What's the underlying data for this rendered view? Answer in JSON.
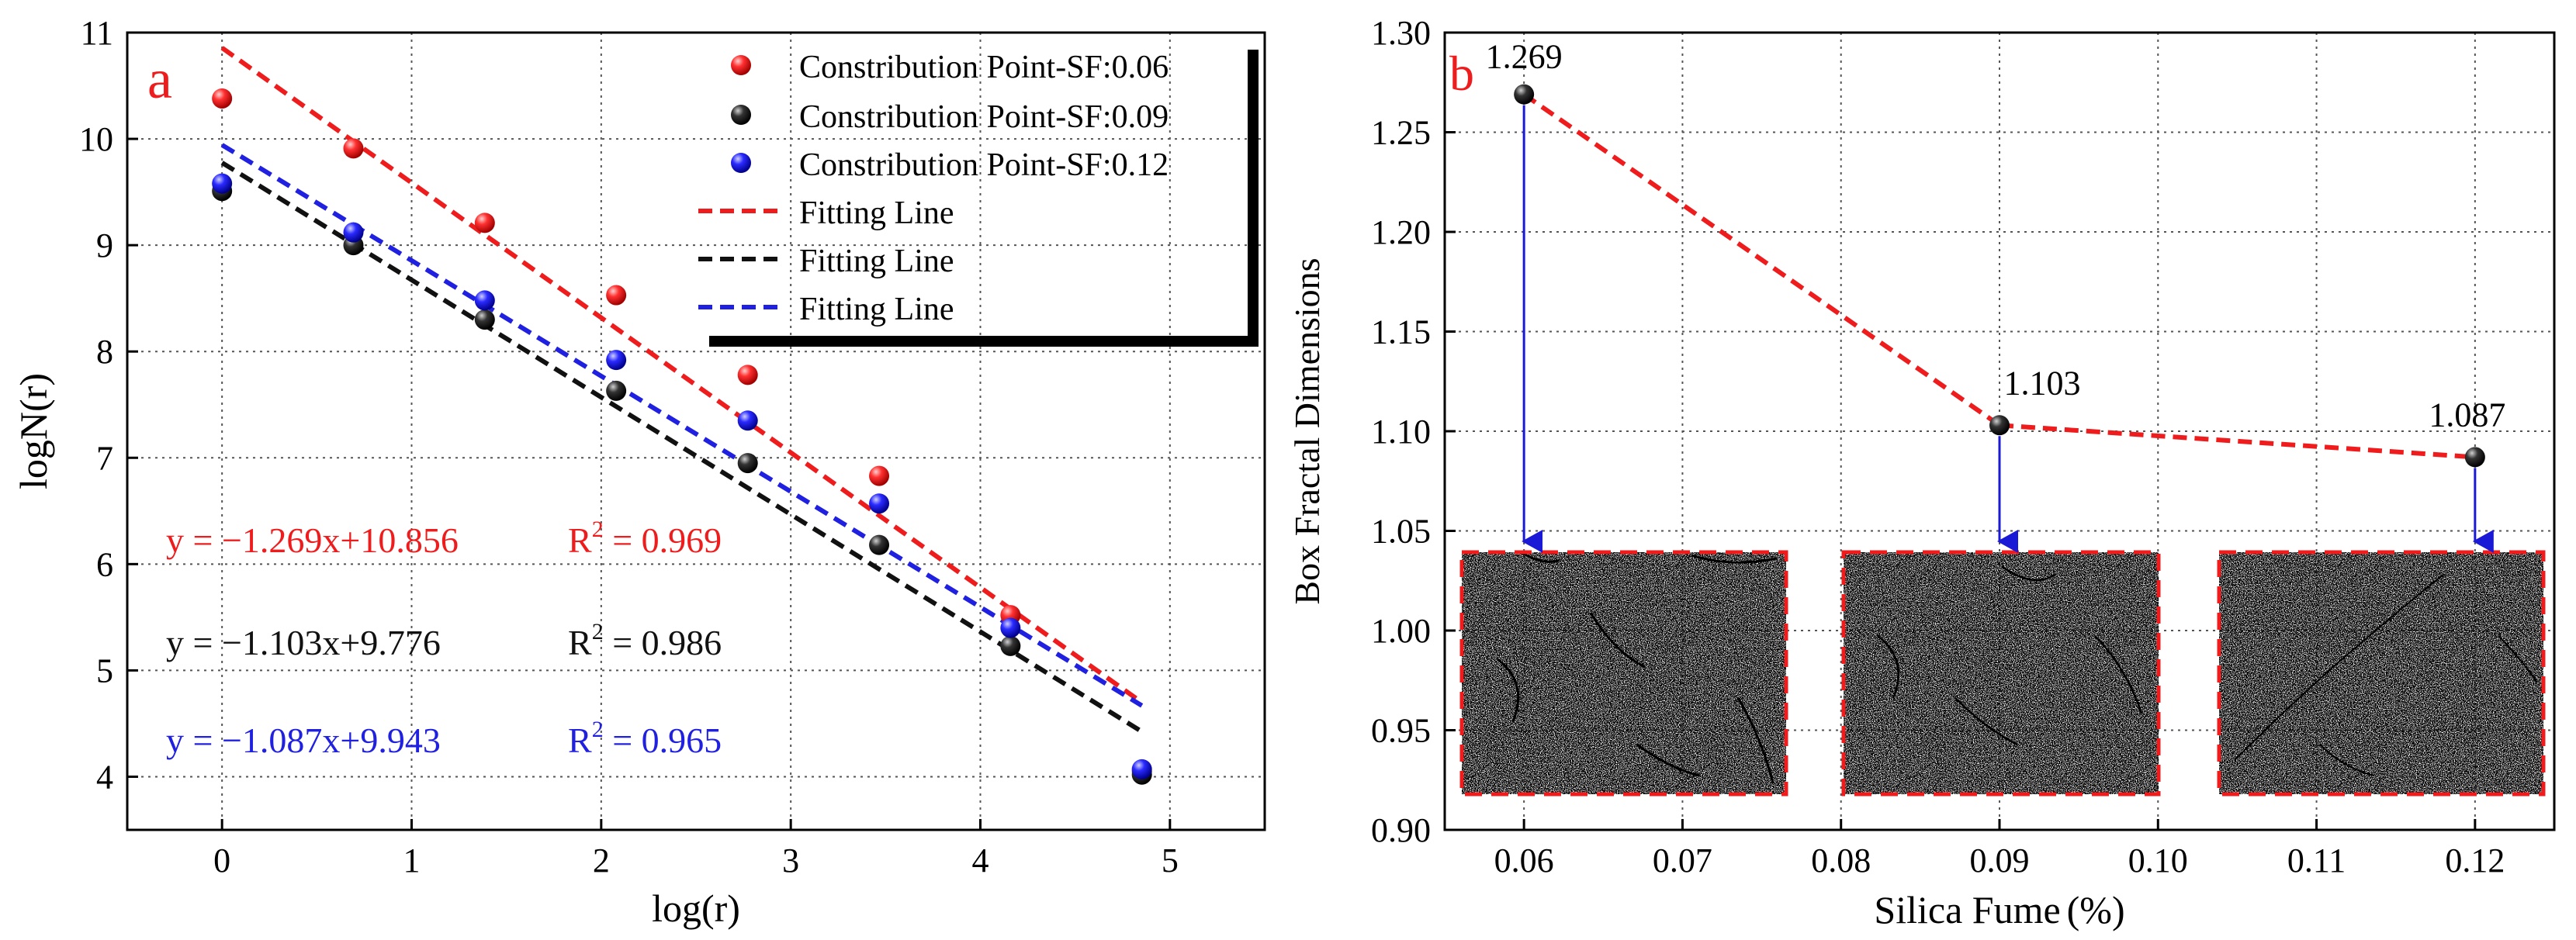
{
  "chart_data": [
    {
      "type": "scatter",
      "panel_label": "a",
      "xlabel": "log(r)",
      "ylabel": "logN(r)",
      "xlim": [
        -0.5,
        5.5
      ],
      "ylim": [
        3.5,
        11
      ],
      "xticks": [
        "0",
        "1",
        "2",
        "3",
        "4",
        "5"
      ],
      "yticks": [
        "4",
        "5",
        "6",
        "7",
        "8",
        "9",
        "10",
        "11"
      ],
      "grid": true,
      "legend_position": "top-right",
      "legend": [
        {
          "label": "Constribution Point-SF:0.06",
          "kind": "marker",
          "color": "#ee1c1c"
        },
        {
          "label": "Constribution Point-SF:0.09",
          "kind": "marker",
          "color": "#111111"
        },
        {
          "label": "Constribution Point-SF:0.12",
          "kind": "marker",
          "color": "#2020e0"
        },
        {
          "label": "Fitting Line",
          "kind": "line",
          "color": "#ee1c1c"
        },
        {
          "label": "Fitting Line",
          "kind": "line",
          "color": "#111111"
        },
        {
          "label": "Fitting Line",
          "kind": "line",
          "color": "#2020e0"
        }
      ],
      "x": [
        0,
        0.693,
        1.386,
        2.079,
        2.773,
        3.466,
        4.159,
        4.852
      ],
      "series": [
        {
          "name": "SF:0.06",
          "color": "#ee1c1c",
          "values": [
            10.38,
            9.91,
            9.21,
            8.53,
            7.78,
            6.83,
            5.52,
            4.05
          ],
          "fit_slope": -1.269,
          "fit_intercept": 10.856,
          "fit_label": "y = −1.269x+10.856",
          "r2_label": "R",
          "r2_sup": "2",
          "r2_value": " = 0.969"
        },
        {
          "name": "SF:0.09",
          "color": "#111111",
          "values": [
            9.51,
            9.0,
            8.3,
            7.63,
            6.95,
            6.18,
            5.23,
            4.02
          ],
          "fit_slope": -1.103,
          "fit_intercept": 9.776,
          "fit_label": "y = −1.103x+9.776",
          "r2_label": "R",
          "r2_sup": "2",
          "r2_value": " = 0.986"
        },
        {
          "name": "SF:0.12",
          "color": "#2020e0",
          "values": [
            9.58,
            9.12,
            8.48,
            7.92,
            7.35,
            6.57,
            5.4,
            4.07
          ],
          "fit_slope": -1.087,
          "fit_intercept": 9.943,
          "fit_label": "y = −1.087x+9.943",
          "r2_label": "R",
          "r2_sup": "2",
          "r2_value": " = 0.965"
        }
      ]
    },
    {
      "type": "line",
      "panel_label": "b",
      "xlabel": "Silica Fume",
      "xlabel_unit": "(%)",
      "ylabel": "Box Fractal Dimensions",
      "xlim": [
        0.055,
        0.125
      ],
      "ylim": [
        0.9,
        1.3
      ],
      "xticks": [
        "0.06",
        "0.07",
        "0.08",
        "0.09",
        "0.10",
        "0.11",
        "0.12"
      ],
      "yticks": [
        "0.90",
        "0.95",
        "1.00",
        "1.05",
        "1.10",
        "1.15",
        "1.20",
        "1.25",
        "1.30"
      ],
      "grid": true,
      "x": [
        0.06,
        0.09,
        0.12
      ],
      "values": [
        1.269,
        1.103,
        1.087
      ],
      "data_labels": [
        "1.269",
        "1.103",
        "1.087"
      ],
      "line_color": "#ee1c1c",
      "arrow_color": "#1a1ad6",
      "inset_images": 3
    }
  ]
}
